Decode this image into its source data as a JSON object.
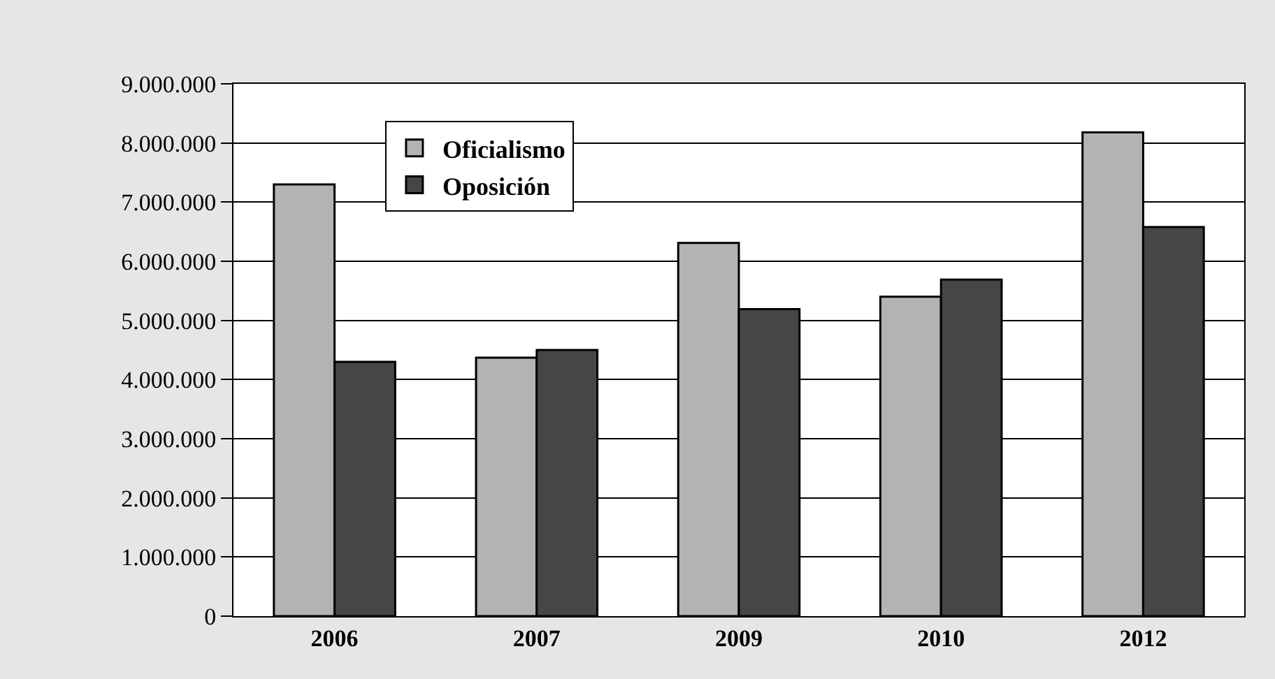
{
  "chart_data": {
    "type": "bar",
    "categories": [
      "2006",
      "2007",
      "2009",
      "2010",
      "2012"
    ],
    "series": [
      {
        "name": "Oficialismo",
        "color": "#b3b3b3",
        "values": [
          7300000,
          4370000,
          6310000,
          5400000,
          8180000
        ]
      },
      {
        "name": "Oposición",
        "color": "#464646",
        "values": [
          4300000,
          4500000,
          5190000,
          5690000,
          6580000
        ]
      }
    ],
    "ylim": [
      0,
      9000000
    ],
    "yticks": [
      0,
      {
        "value": 1000000,
        "label": "1.000.000"
      },
      {
        "value": 2000000,
        "label": "2.000.000"
      },
      {
        "value": 3000000,
        "label": "3.000.000"
      },
      {
        "value": 4000000,
        "label": "4.000.000"
      },
      {
        "value": 5000000,
        "label": "5.000.000"
      },
      {
        "value": 6000000,
        "label": "6.000.000"
      },
      {
        "value": 7000000,
        "label": "7.000.000"
      },
      {
        "value": 8000000,
        "label": "8.000.000"
      },
      {
        "value": 9000000,
        "label": "9.000.000"
      }
    ],
    "grid": "y",
    "legend": "top left"
  }
}
